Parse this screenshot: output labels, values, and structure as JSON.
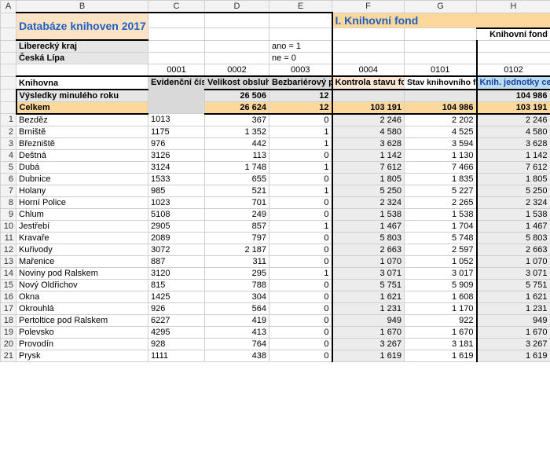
{
  "colHeaders": [
    "A",
    "B",
    "C",
    "D",
    "E",
    "F",
    "G",
    "H"
  ],
  "title": "Databáze knihoven 2017",
  "sectionTitle": "I. Knihovní fond",
  "subSection": "Knihovní fond",
  "region": "Liberecký kraj",
  "district": "Česká Lípa",
  "noteYes": "ano = 1",
  "noteNo": "ne  = 0",
  "codes": {
    "C": "0001",
    "D": "0002",
    "E": "0003",
    "F": "0004",
    "G": "0101",
    "H": "0102"
  },
  "headers": {
    "lib": "Knihovna",
    "evid": "Evidenční číslo MK",
    "pop": "Velikost obsluhované populace",
    "acc": "Bezbariérový přístup",
    "ctrl": "Kontrola stavu fondu",
    "prev": "Stav knihovního fondu minulého roku",
    "curr": "Knih. jednotky celkem sledovaného roku"
  },
  "prevLabel": "Výsledky minulého roku",
  "totLabel": "Celkem",
  "prevRow": {
    "D": "26 506",
    "E": "12",
    "F": "",
    "G": "",
    "H": "104 986"
  },
  "totRow": {
    "D": "26 624",
    "E": "12",
    "F": "103 191",
    "G": "104 986",
    "H": "103 191"
  },
  "rows": [
    {
      "n": "1",
      "name": "Bezděz",
      "c": "1013",
      "d": "367",
      "e": "0",
      "f": "2 246",
      "g": "2 202",
      "h": "2 246"
    },
    {
      "n": "2",
      "name": "Brniště",
      "c": "1175",
      "d": "1 352",
      "e": "1",
      "f": "4 580",
      "g": "4 525",
      "h": "4 580"
    },
    {
      "n": "3",
      "name": "Březniště",
      "c": "976",
      "d": "442",
      "e": "1",
      "f": "3 628",
      "g": "3 594",
      "h": "3 628"
    },
    {
      "n": "4",
      "name": "Deštná",
      "c": "3126",
      "d": "113",
      "e": "0",
      "f": "1 142",
      "g": "1 130",
      "h": "1 142"
    },
    {
      "n": "5",
      "name": "Dubá",
      "c": "3124",
      "d": "1 748",
      "e": "1",
      "f": "7 612",
      "g": "7 466",
      "h": "7 612"
    },
    {
      "n": "6",
      "name": "Dubnice",
      "c": "1533",
      "d": "655",
      "e": "0",
      "f": "1 805",
      "g": "1 835",
      "h": "1 805"
    },
    {
      "n": "7",
      "name": "Holany",
      "c": "985",
      "d": "521",
      "e": "1",
      "f": "5 250",
      "g": "5 227",
      "h": "5 250"
    },
    {
      "n": "8",
      "name": "Horní Police",
      "c": "1023",
      "d": "701",
      "e": "0",
      "f": "2 324",
      "g": "2 265",
      "h": "2 324"
    },
    {
      "n": "9",
      "name": "Chlum",
      "c": "5108",
      "d": "249",
      "e": "0",
      "f": "1 538",
      "g": "1 538",
      "h": "1 538"
    },
    {
      "n": "10",
      "name": "Jestřebí",
      "c": "2905",
      "d": "857",
      "e": "1",
      "f": "1 467",
      "g": "1 704",
      "h": "1 467"
    },
    {
      "n": "11",
      "name": "Kravaře",
      "c": "2089",
      "d": "797",
      "e": "0",
      "f": "5 803",
      "g": "5 748",
      "h": "5 803"
    },
    {
      "n": "12",
      "name": "Kuřivody",
      "c": "3072",
      "d": "2 187",
      "e": "0",
      "f": "2 663",
      "g": "2 597",
      "h": "2 663"
    },
    {
      "n": "13",
      "name": "Mařenice",
      "c": "887",
      "d": "311",
      "e": "0",
      "f": "1 070",
      "g": "1 052",
      "h": "1 070"
    },
    {
      "n": "14",
      "name": "Noviny pod Ralskem",
      "c": "3120",
      "d": "295",
      "e": "1",
      "f": "3 071",
      "g": "3 017",
      "h": "3 071"
    },
    {
      "n": "15",
      "name": "Nový Oldřichov",
      "c": "815",
      "d": "788",
      "e": "0",
      "f": "5 751",
      "g": "5 909",
      "h": "5 751"
    },
    {
      "n": "16",
      "name": "Okna",
      "c": "1425",
      "d": "304",
      "e": "0",
      "f": "1 621",
      "g": "1 608",
      "h": "1 621"
    },
    {
      "n": "17",
      "name": "Okrouhlá",
      "c": "926",
      "d": "564",
      "e": "0",
      "f": "1 231",
      "g": "1 170",
      "h": "1 231"
    },
    {
      "n": "18",
      "name": "Pertoltice pod Ralskem",
      "c": "6227",
      "d": "419",
      "e": "0",
      "f": "949",
      "g": "922",
      "h": "949"
    },
    {
      "n": "19",
      "name": "Polevsko",
      "c": "4295",
      "d": "413",
      "e": "0",
      "f": "1 670",
      "g": "1 670",
      "h": "1 670"
    },
    {
      "n": "20",
      "name": "Provodín",
      "c": "928",
      "d": "764",
      "e": "0",
      "f": "3 267",
      "g": "3 181",
      "h": "3 267"
    },
    {
      "n": "21",
      "name": "Prysk",
      "c": "1111",
      "d": "438",
      "e": "0",
      "f": "1 619",
      "g": "1 619",
      "h": "1 619"
    }
  ]
}
